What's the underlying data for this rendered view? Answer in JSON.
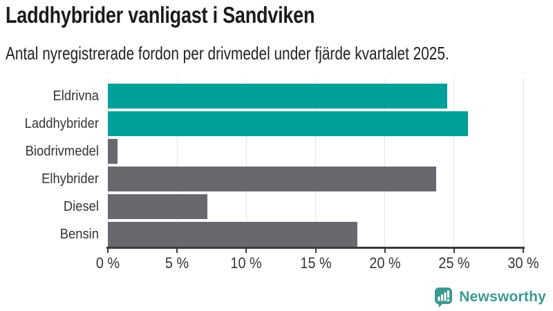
{
  "header": {
    "title": "Laddhybrider vanligast i Sandviken",
    "subtitle": "Antal nyregistrerade fordon per drivmedel under fjärde kvartalet 2025."
  },
  "chart_data": {
    "type": "bar",
    "orientation": "horizontal",
    "title": "Laddhybrider vanligast i Sandviken",
    "subtitle": "Antal nyregistrerade fordon per drivmedel under fjärde kvartalet 2025.",
    "categories": [
      "Eldrivna",
      "Laddhybrider",
      "Biodrivmedel",
      "Elhybrider",
      "Diesel",
      "Bensin"
    ],
    "values": [
      24.5,
      26,
      0.7,
      23.7,
      7.2,
      18
    ],
    "unit": "%",
    "xlim": [
      0,
      30
    ],
    "x_tick_values": [
      0,
      5,
      10,
      15,
      20,
      25,
      30
    ],
    "x_tick_labels": [
      "0 %",
      "5 %",
      "10 %",
      "15 %",
      "20 %",
      "25 %",
      "30 %"
    ],
    "grid": true,
    "legend": "none",
    "bar_colors": [
      "#00A099",
      "#00A099",
      "#68686E",
      "#68686E",
      "#68686E",
      "#68686E"
    ],
    "highlight_color": "#00A099",
    "default_color": "#68686E",
    "gridline_color": "#e4e4e4",
    "axis_color": "#3a3a3a"
  },
  "footer": {
    "brand": "Newsworthy",
    "logo_icon": "newsworthy-speech-bubble-bars-icon",
    "brand_color": "#3B9A8F"
  }
}
